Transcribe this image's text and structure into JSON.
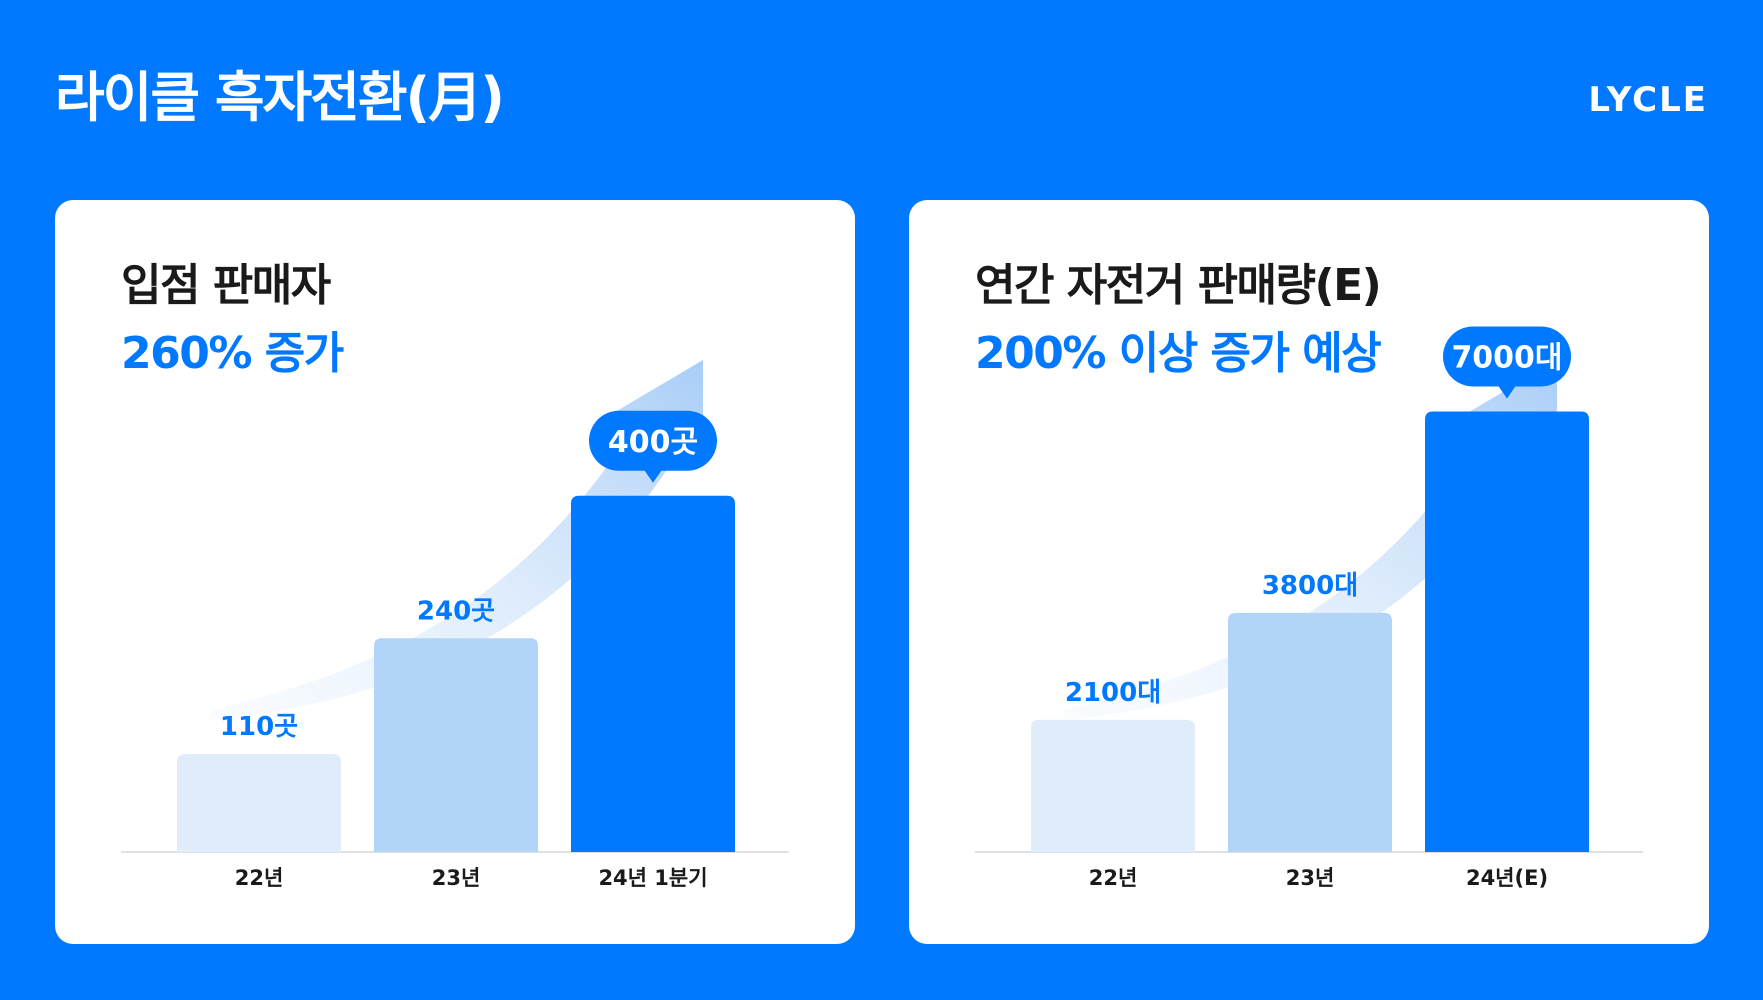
{
  "header": {
    "title": "라이클 흑자전환(月)",
    "brand": "LYCLE"
  },
  "colors": {
    "background": "#0078FF",
    "accent": "#0078FF",
    "bar_light": "#E1ECFA",
    "bar_mid": "#B2D4F8",
    "bar_dark": "#0078FF"
  },
  "chart_data": [
    {
      "type": "bar",
      "title": "입점 판매자",
      "subtitle": "260% 증가",
      "categories": [
        "22년",
        "23년",
        "24년 1분기"
      ],
      "values": [
        110,
        240,
        400
      ],
      "data_labels": [
        "110곳",
        "240곳",
        "400곳"
      ],
      "highlight_index": 2,
      "ylim": [
        0,
        530
      ],
      "grid": false,
      "decoration": "upward-trend-arrow"
    },
    {
      "type": "bar",
      "title": "연간 자전거 판매량(E)",
      "subtitle": "200% 이상 증가 예상",
      "categories": [
        "22년",
        "23년",
        "24년(E)"
      ],
      "values": [
        2100,
        3800,
        7000
      ],
      "data_labels": [
        "2100대",
        "3800대",
        "7000대"
      ],
      "highlight_index": 2,
      "ylim": [
        0,
        7500
      ],
      "grid": false,
      "decoration": "upward-trend-arrow"
    }
  ]
}
